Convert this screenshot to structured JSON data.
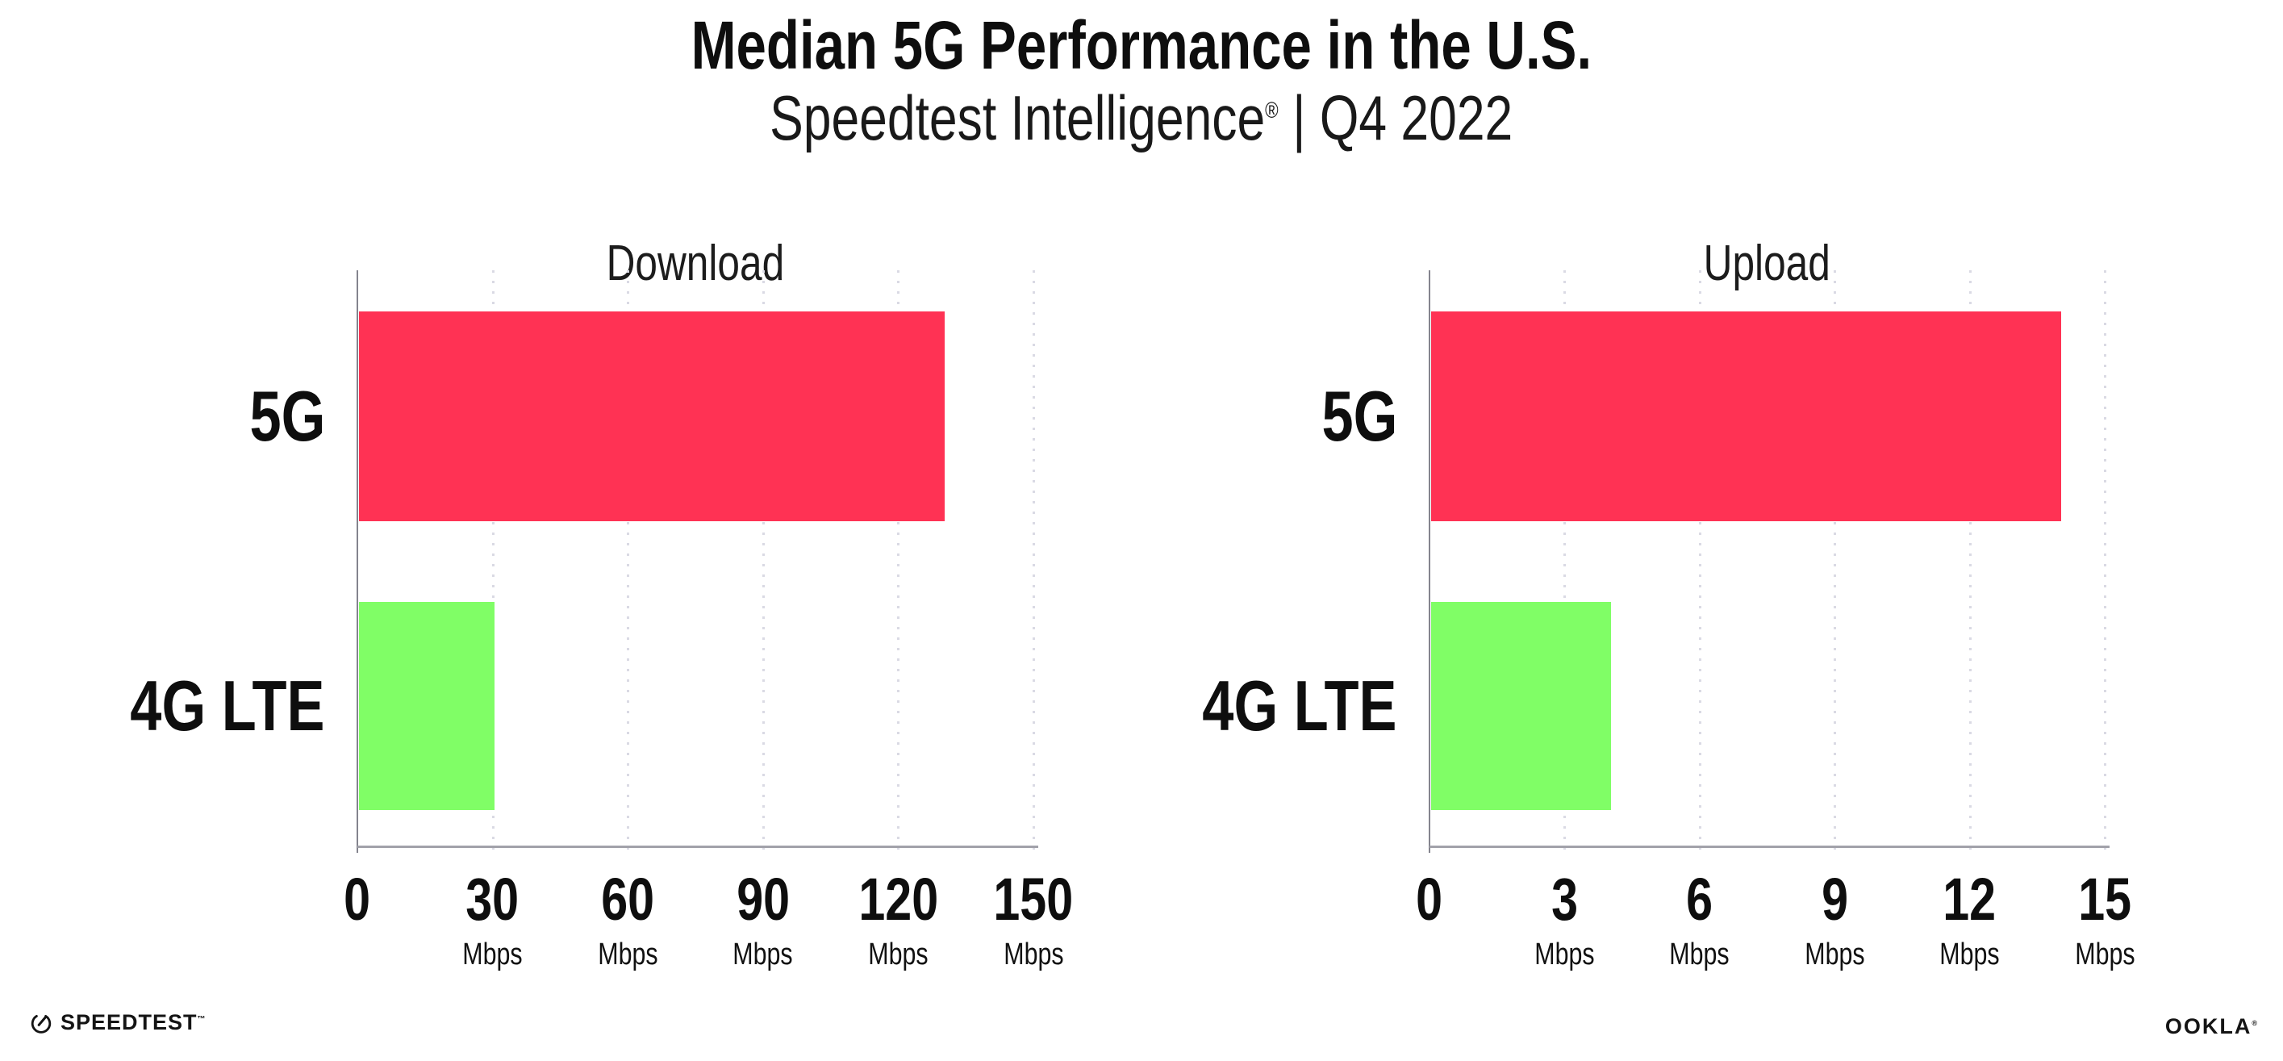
{
  "page": {
    "title": "Median 5G Performance in the U.S.",
    "subtitle_brand": "Speedtest Intelligence",
    "subtitle_reg": "®",
    "subtitle_rest": "| Q4 2022"
  },
  "colors": {
    "bar_5g": "#ff3254",
    "bar_4g": "#80fe66",
    "axis": "#a2a2aa",
    "grid": "#dadae4",
    "text": "#0e0e0e"
  },
  "chart_data": [
    {
      "type": "bar",
      "orientation": "horizontal",
      "title": "Download",
      "categories": [
        "5G",
        "4G LTE"
      ],
      "values": [
        130,
        30
      ],
      "unit": "Mbps",
      "xlim": [
        0,
        150
      ],
      "xticks": [
        0,
        30,
        60,
        90,
        120,
        150
      ],
      "bar_colors": [
        "#ff3254",
        "#80fe66"
      ],
      "grid": "dotted-vertical",
      "legend": "none",
      "data_labels": "none"
    },
    {
      "type": "bar",
      "orientation": "horizontal",
      "title": "Upload",
      "categories": [
        "5G",
        "4G LTE"
      ],
      "values": [
        14,
        4
      ],
      "unit": "Mbps",
      "xlim": [
        0,
        15
      ],
      "xticks": [
        0,
        3,
        6,
        9,
        12,
        15
      ],
      "bar_colors": [
        "#ff3254",
        "#80fe66"
      ],
      "grid": "dotted-vertical",
      "legend": "none",
      "data_labels": "none"
    }
  ],
  "footer": {
    "speedtest_label": "SPEEDTEST",
    "speedtest_tm": "™",
    "ookla_label": "OOKLA",
    "ookla_reg": "®"
  }
}
